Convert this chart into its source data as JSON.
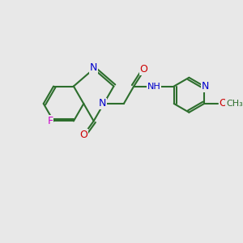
{
  "background_color": "#e8e8e8",
  "figsize": [
    3.0,
    3.0
  ],
  "dpi": 100,
  "bond_color": "#2d6e2d",
  "bond_lw": 1.5,
  "atom_colors": {
    "N": "#0000cc",
    "O": "#cc0000",
    "F": "#cc00cc",
    "C": "#2d6e2d"
  },
  "font_size": 9,
  "font_size_small": 8
}
